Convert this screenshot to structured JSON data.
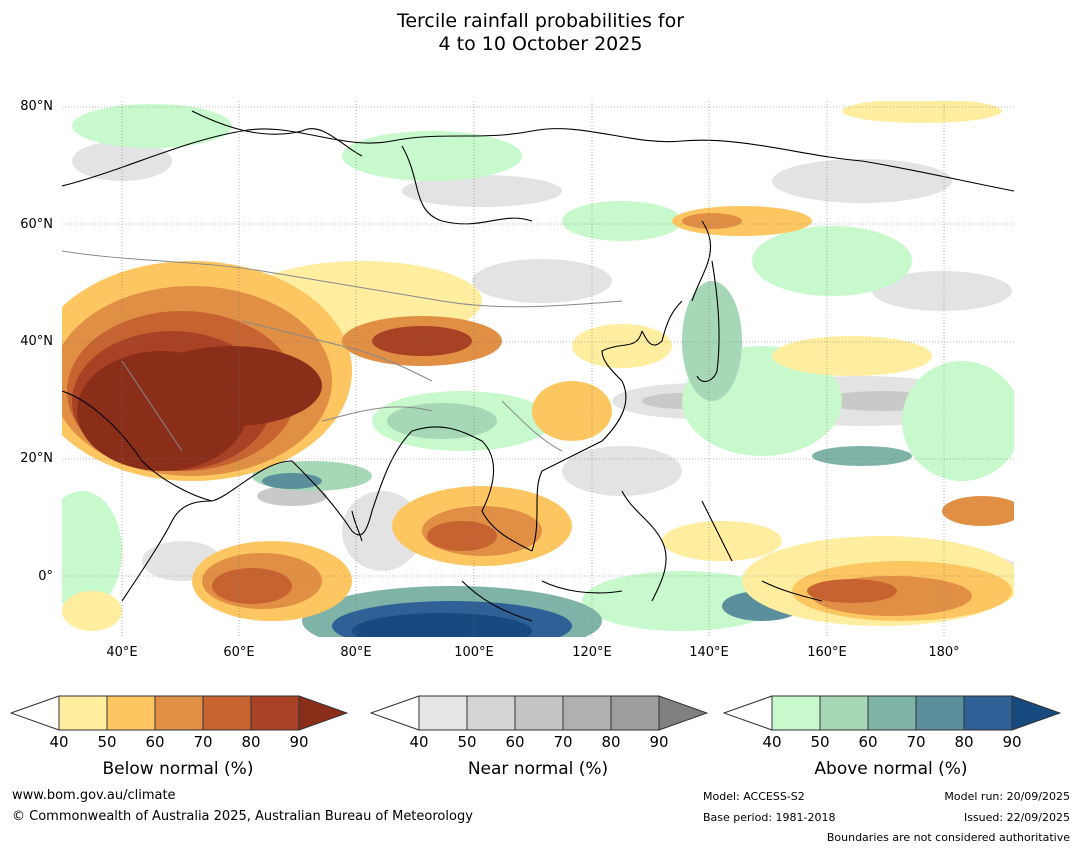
{
  "title": {
    "line1": "Tercile rainfall probabilities for",
    "line2": "4 to 10 October 2025"
  },
  "map": {
    "lat_labels": [
      "80°N",
      "60°N",
      "40°N",
      "20°N",
      "0°"
    ],
    "lon_labels": [
      "40°E",
      "60°E",
      "80°E",
      "100°E",
      "120°E",
      "140°E",
      "160°E",
      "180°"
    ]
  },
  "legends": [
    {
      "title": "Below normal (%)",
      "ticks": [
        "40",
        "50",
        "60",
        "70",
        "80",
        "90"
      ],
      "colors": [
        "#ffeda0",
        "#fec661",
        "#e08f45",
        "#c76231",
        "#a94125",
        "#8a2e1a"
      ]
    },
    {
      "title": "Near normal (%)",
      "ticks": [
        "40",
        "50",
        "60",
        "70",
        "80",
        "90"
      ],
      "colors": [
        "#e5e5e5",
        "#d4d4d4",
        "#c4c4c4",
        "#b0b0b0",
        "#9e9e9e",
        "#808080"
      ]
    },
    {
      "title": "Above normal (%)",
      "ticks": [
        "40",
        "50",
        "60",
        "70",
        "80",
        "90"
      ],
      "colors": [
        "#c7f9cc",
        "#a6d8b8",
        "#7fb3a8",
        "#5a8f9b",
        "#2f6196",
        "#174a7e"
      ]
    }
  ],
  "footer": {
    "website": "www.bom.gov.au/climate",
    "copyright": "© Commonwealth of Australia 2025, Australian Bureau of Meteorology",
    "model": "Model: ACCESS-S2",
    "base_period": "Base period: 1981-2018",
    "model_run": "Model run: 20/09/2025",
    "issued": "Issued: 22/09/2025",
    "disclaimer": "Boundaries are not considered authoritative"
  }
}
